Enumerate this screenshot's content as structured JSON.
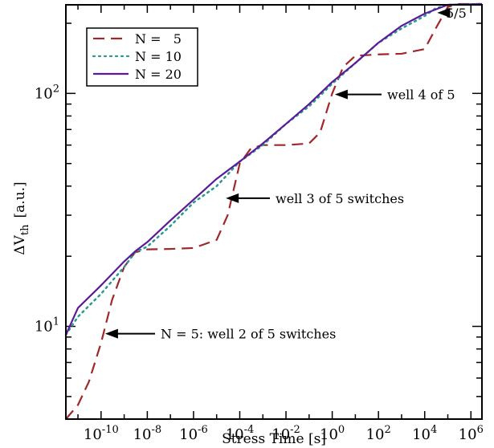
{
  "chart_data": {
    "type": "line",
    "title": "",
    "xlabel": "Stress Time  [s]",
    "ylabel": "ΔV",
    "ylabel_sub": "th",
    "ylabel_unit": "[a.u.]",
    "x_scale": "log",
    "y_scale": "log",
    "xlim": [
      3e-12,
      3000000.0
    ],
    "ylim": [
      4,
      240
    ],
    "x_ticks": [
      {
        "base": "10",
        "exp": "-10",
        "value": 1e-10
      },
      {
        "base": "10",
        "exp": "-8",
        "value": 1e-08
      },
      {
        "base": "10",
        "exp": "-6",
        "value": 1e-06
      },
      {
        "base": "10",
        "exp": "-4",
        "value": 0.0001
      },
      {
        "base": "10",
        "exp": "-2",
        "value": 0.01
      },
      {
        "base": "10",
        "exp": "0",
        "value": 1
      },
      {
        "base": "10",
        "exp": "2",
        "value": 100
      },
      {
        "base": "10",
        "exp": "4",
        "value": 10000
      },
      {
        "base": "10",
        "exp": "6",
        "value": 1000000
      }
    ],
    "y_ticks": [
      {
        "base": "10",
        "exp": "1",
        "value": 10
      },
      {
        "base": "10",
        "exp": "2",
        "value": 100
      }
    ],
    "legend_position": "top-left",
    "series": [
      {
        "name": "N =   5",
        "color": "#a0282a",
        "dash": "dashed",
        "points": [
          [
            3e-12,
            4.0
          ],
          [
            1e-11,
            4.6
          ],
          [
            3e-11,
            5.8
          ],
          [
            1e-10,
            8.5
          ],
          [
            3e-10,
            13.0
          ],
          [
            1e-09,
            18.0
          ],
          [
            3e-09,
            20.8
          ],
          [
            1e-08,
            21.4
          ],
          [
            1e-07,
            21.5
          ],
          [
            1e-06,
            21.7
          ],
          [
            1e-05,
            23.5
          ],
          [
            3e-05,
            30.0
          ],
          [
            0.0001,
            50.0
          ],
          [
            0.0003,
            58.0
          ],
          [
            0.001,
            60.0
          ],
          [
            0.01,
            60.0
          ],
          [
            0.1,
            61.0
          ],
          [
            0.3,
            68.0
          ],
          [
            1,
            100.0
          ],
          [
            3,
            130.0
          ],
          [
            10,
            145.0
          ],
          [
            100,
            147.0
          ],
          [
            1000,
            148.0
          ],
          [
            10000.0,
            155.0
          ],
          [
            30000.0,
            190.0
          ],
          [
            100000.0,
            235.0
          ],
          [
            300000.0,
            242.0
          ],
          [
            3000000.0,
            242.0
          ]
        ]
      },
      {
        "name": "N = 10",
        "color": "#2a9a8e",
        "dash": "dotted",
        "points": [
          [
            3e-12,
            9.2
          ],
          [
            1e-11,
            11.0
          ],
          [
            1e-10,
            13.8
          ],
          [
            1e-09,
            18.0
          ],
          [
            3e-09,
            20.8
          ],
          [
            1e-08,
            22.0
          ],
          [
            1e-07,
            27.0
          ],
          [
            1e-06,
            34.0
          ],
          [
            1e-05,
            40.0
          ],
          [
            0.0001,
            51.0
          ],
          [
            0.001,
            60.0
          ],
          [
            0.01,
            74.0
          ],
          [
            0.1,
            88.0
          ],
          [
            1,
            110.0
          ],
          [
            10,
            135.0
          ],
          [
            100,
            165.0
          ],
          [
            1000,
            190.0
          ],
          [
            10000.0,
            215.0
          ],
          [
            30000.0,
            232.0
          ],
          [
            100000.0,
            240.0
          ],
          [
            3000000.0,
            242.0
          ]
        ]
      },
      {
        "name": "N = 20",
        "color": "#5a1a9a",
        "dash": "solid",
        "points": [
          [
            3e-12,
            9.2
          ],
          [
            1e-11,
            12.0
          ],
          [
            1e-10,
            15.0
          ],
          [
            1e-09,
            19.0
          ],
          [
            3e-09,
            21.0
          ],
          [
            1e-08,
            23.0
          ],
          [
            1e-07,
            28.5
          ],
          [
            1e-06,
            35.0
          ],
          [
            1e-05,
            43.0
          ],
          [
            0.0001,
            51.0
          ],
          [
            0.001,
            61.0
          ],
          [
            0.01,
            74.0
          ],
          [
            0.1,
            90.0
          ],
          [
            1,
            112.0
          ],
          [
            10,
            135.0
          ],
          [
            100,
            165.0
          ],
          [
            1000,
            195.0
          ],
          [
            10000.0,
            220.0
          ],
          [
            100000.0,
            240.0
          ],
          [
            3000000.0,
            242.0
          ]
        ]
      }
    ],
    "annotations": [
      {
        "text": "N = 5: well 2 of 5 switches",
        "target": [
          1.5e-10,
          9.3
        ]
      },
      {
        "text": "well 3 of 5 switches",
        "target": [
          2.5e-05,
          35.5
        ]
      },
      {
        "text": "well 4 of 5",
        "target": [
          1.3,
          99.0
        ]
      },
      {
        "text": "5/5",
        "target": [
          35000.0,
          222.0
        ]
      }
    ]
  }
}
